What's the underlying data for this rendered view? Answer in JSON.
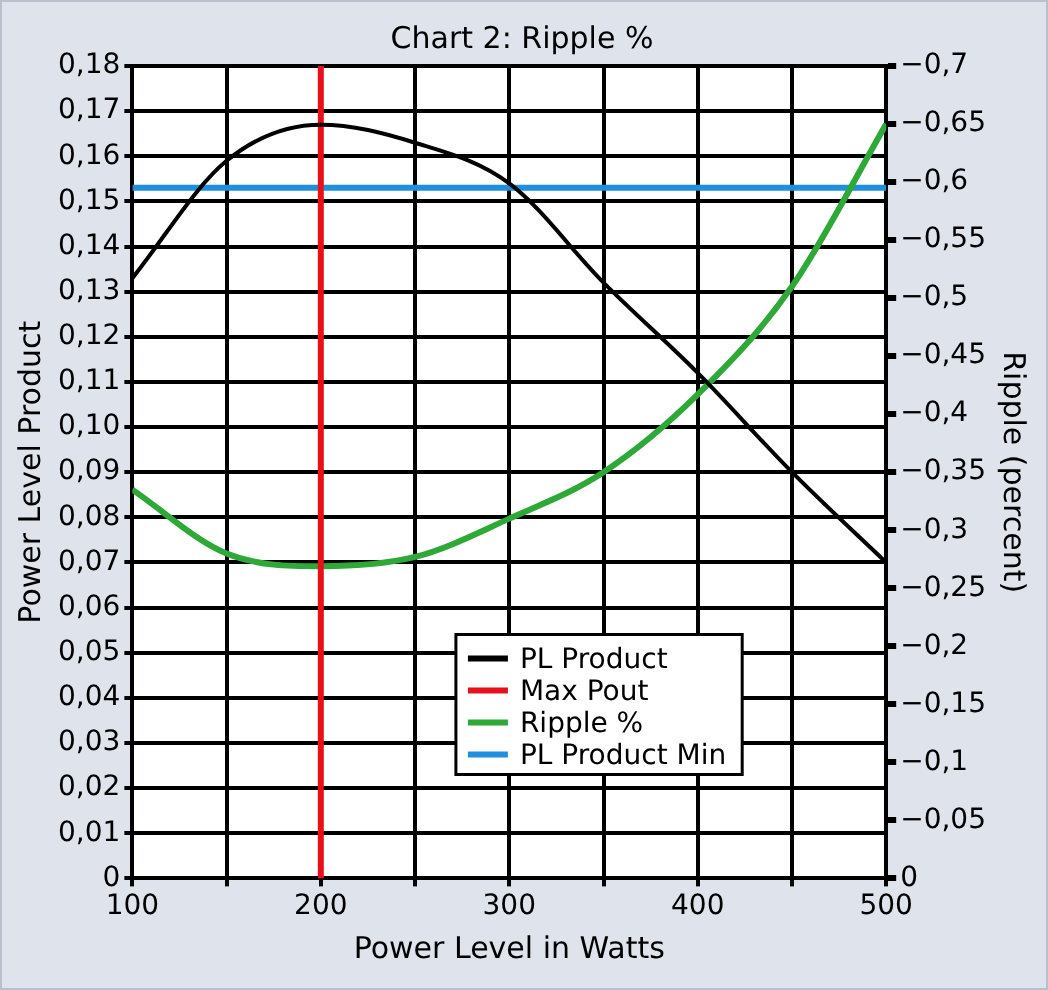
{
  "chart_data": {
    "type": "line",
    "title": "Chart 2: Ripple %",
    "xlabel": "Power Level in Watts",
    "ylabel": "Power Level Product",
    "y2label": "Ripple (percent)",
    "x": [
      100,
      150,
      200,
      250,
      300,
      350,
      400,
      450,
      500
    ],
    "xlim": [
      100,
      500
    ],
    "xticks": [
      100,
      {
        "value": 150,
        "label": null
      },
      200,
      {
        "value": 250,
        "label": null
      },
      300,
      {
        "value": 350,
        "label": null
      },
      400,
      {
        "value": 450,
        "label": null
      },
      500
    ],
    "ylim": [
      0,
      0.18
    ],
    "yticks": [
      {
        "value": 0,
        "label": "0"
      },
      {
        "value": 0.01,
        "label": "0,01"
      },
      {
        "value": 0.02,
        "label": "0,02"
      },
      {
        "value": 0.03,
        "label": "0,03"
      },
      {
        "value": 0.04,
        "label": "0,04"
      },
      {
        "value": 0.05,
        "label": "0,05"
      },
      {
        "value": 0.06,
        "label": "0,06"
      },
      {
        "value": 0.07,
        "label": "0,07"
      },
      {
        "value": 0.08,
        "label": "0,08"
      },
      {
        "value": 0.09,
        "label": "0,09"
      },
      {
        "value": 0.1,
        "label": "0,10"
      },
      {
        "value": 0.11,
        "label": "0,11"
      },
      {
        "value": 0.12,
        "label": "0,12"
      },
      {
        "value": 0.13,
        "label": "0,13"
      },
      {
        "value": 0.14,
        "label": "0,14"
      },
      {
        "value": 0.15,
        "label": "0,15"
      },
      {
        "value": 0.16,
        "label": "0,16"
      },
      {
        "value": 0.17,
        "label": "0,17"
      },
      {
        "value": 0.18,
        "label": "0,18"
      }
    ],
    "y2lim": [
      0,
      -0.7
    ],
    "y2ticks": [
      {
        "value": 0,
        "label": "0"
      },
      {
        "value": -0.05,
        "label": "−0,05"
      },
      {
        "value": -0.1,
        "label": "−0,1"
      },
      {
        "value": -0.15,
        "label": "−0,15"
      },
      {
        "value": -0.2,
        "label": "−0,2"
      },
      {
        "value": -0.25,
        "label": "−0,25"
      },
      {
        "value": -0.3,
        "label": "−0,3"
      },
      {
        "value": -0.35,
        "label": "−0,35"
      },
      {
        "value": -0.4,
        "label": "−0,4"
      },
      {
        "value": -0.45,
        "label": "−0,45"
      },
      {
        "value": -0.5,
        "label": "−0,5"
      },
      {
        "value": -0.55,
        "label": "−0,55"
      },
      {
        "value": -0.6,
        "label": "−0,6"
      },
      {
        "value": -0.65,
        "label": "−0,65"
      },
      {
        "value": -0.7,
        "label": "−0,7"
      }
    ],
    "series": [
      {
        "name": "PL Product",
        "color": "#000000",
        "values": [
          0.133,
          0.159,
          0.167,
          0.163,
          0.154,
          0.132,
          0.112,
          0.09,
          0.07
        ]
      },
      {
        "name": "Max Pout",
        "color": "#e8101a",
        "x": [
          200,
          200
        ],
        "values": [
          0,
          0.18
        ]
      },
      {
        "name": "Ripple %",
        "color": "#2ea836",
        "axis": "y2",
        "values": [
          -0.335,
          -0.28,
          -0.269,
          -0.277,
          -0.31,
          -0.35,
          -0.417,
          -0.51,
          -0.65
        ]
      },
      {
        "name": "PL Product Min",
        "color": "#1f8fe0",
        "x": [
          100,
          500
        ],
        "values": [
          0.153,
          0.153
        ]
      }
    ],
    "grid": true,
    "legend": "bottom right",
    "marker": "none",
    "line_style": "solid"
  }
}
